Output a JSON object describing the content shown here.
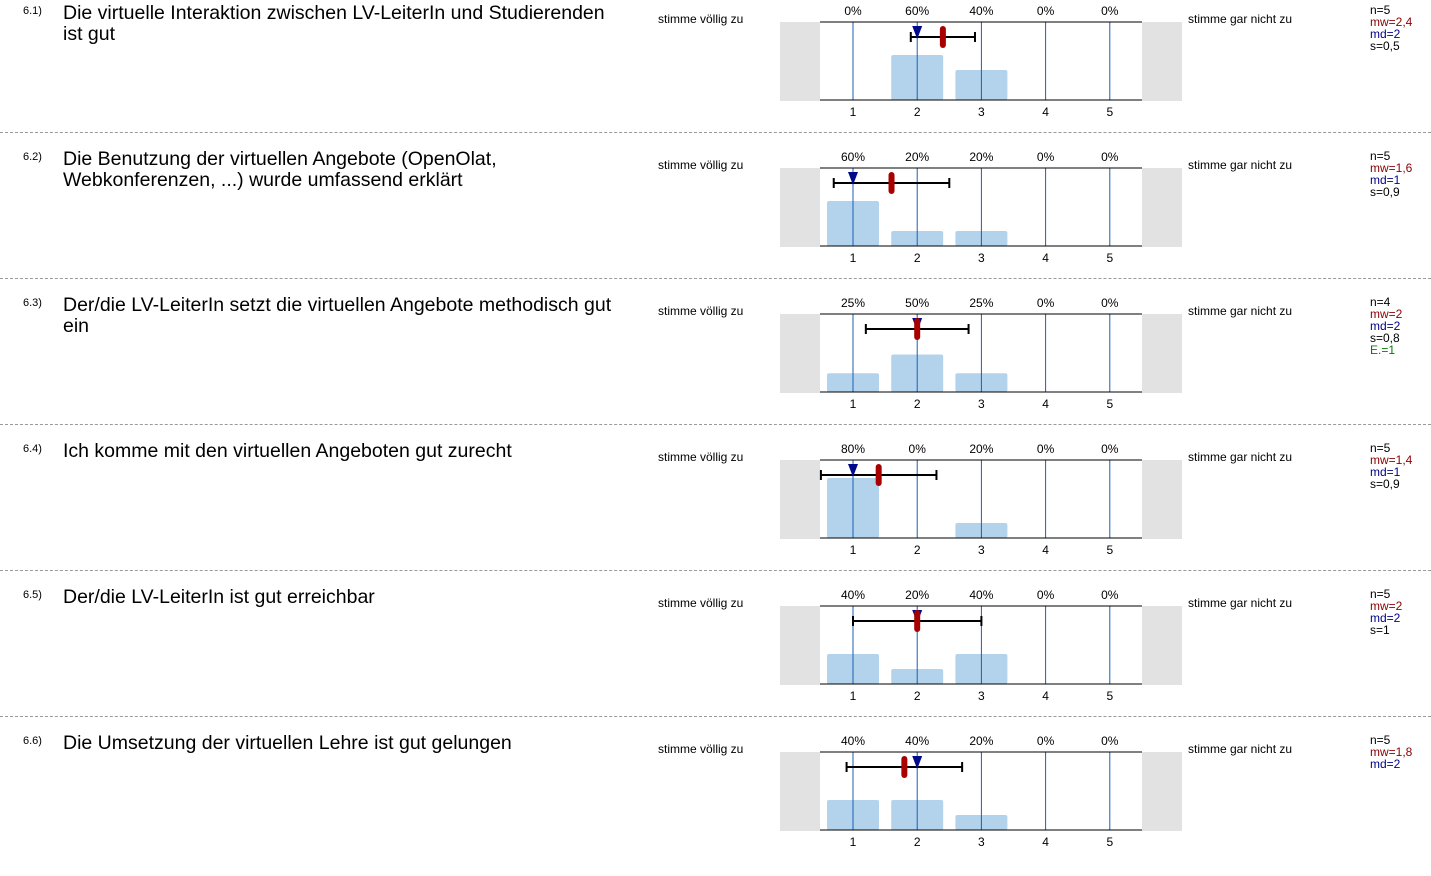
{
  "colors": {
    "bar": "#b3d3ec",
    "line": "#1a5fb4",
    "mean": "#a80000",
    "median": "#000a8a",
    "stat_n": "#000000",
    "stat_mw": "#8b0000",
    "stat_md": "#00008b",
    "stat_e": "#008000"
  },
  "scale": {
    "left_label": "stimme völlig zu",
    "right_label": "stimme gar nicht zu",
    "ticks": [
      "1",
      "2",
      "3",
      "4",
      "5"
    ]
  },
  "chart_data": [
    {
      "type": "bar",
      "number": "6.1)",
      "question": "Die virtuelle Interaktion zwischen LV-LeiterIn und Studierenden ist gut",
      "categories": [
        "1",
        "2",
        "3",
        "4",
        "5"
      ],
      "values": [
        0,
        60,
        40,
        0,
        0
      ],
      "value_labels": [
        "0%",
        "60%",
        "40%",
        "0%",
        "0%"
      ],
      "mean": 2.4,
      "median": 2,
      "sd": 0.5,
      "ylim": [
        0,
        100
      ],
      "stats": {
        "n": "n=5",
        "mw": "mw=2,4",
        "md": "md=2",
        "s": "s=0,5"
      }
    },
    {
      "type": "bar",
      "number": "6.2)",
      "question": "Die Benutzung der virtuellen Angebote (OpenOlat, Webkonferenzen, ...) wurde umfassend erklärt",
      "categories": [
        "1",
        "2",
        "3",
        "4",
        "5"
      ],
      "values": [
        60,
        20,
        20,
        0,
        0
      ],
      "value_labels": [
        "60%",
        "20%",
        "20%",
        "0%",
        "0%"
      ],
      "mean": 1.6,
      "median": 1,
      "sd": 0.9,
      "ylim": [
        0,
        100
      ],
      "stats": {
        "n": "n=5",
        "mw": "mw=1,6",
        "md": "md=1",
        "s": "s=0,9"
      }
    },
    {
      "type": "bar",
      "number": "6.3)",
      "question": "Der/die LV-LeiterIn setzt die virtuellen Angebote methodisch gut ein",
      "categories": [
        "1",
        "2",
        "3",
        "4",
        "5"
      ],
      "values": [
        25,
        50,
        25,
        0,
        0
      ],
      "value_labels": [
        "25%",
        "50%",
        "25%",
        "0%",
        "0%"
      ],
      "mean": 2,
      "median": 2,
      "sd": 0.8,
      "ylim": [
        0,
        100
      ],
      "stats": {
        "n": "n=4",
        "mw": "mw=2",
        "md": "md=2",
        "s": "s=0,8",
        "e": "E.=1"
      }
    },
    {
      "type": "bar",
      "number": "6.4)",
      "question": "Ich komme mit den virtuellen Angeboten gut zurecht",
      "categories": [
        "1",
        "2",
        "3",
        "4",
        "5"
      ],
      "values": [
        80,
        0,
        20,
        0,
        0
      ],
      "value_labels": [
        "80%",
        "0%",
        "20%",
        "0%",
        "0%"
      ],
      "mean": 1.4,
      "median": 1,
      "sd": 0.9,
      "ylim": [
        0,
        100
      ],
      "stats": {
        "n": "n=5",
        "mw": "mw=1,4",
        "md": "md=1",
        "s": "s=0,9"
      }
    },
    {
      "type": "bar",
      "number": "6.5)",
      "question": "Der/die LV-LeiterIn ist gut erreichbar",
      "categories": [
        "1",
        "2",
        "3",
        "4",
        "5"
      ],
      "values": [
        40,
        20,
        40,
        0,
        0
      ],
      "value_labels": [
        "40%",
        "20%",
        "40%",
        "0%",
        "0%"
      ],
      "mean": 2,
      "median": 2,
      "sd": 1,
      "ylim": [
        0,
        100
      ],
      "stats": {
        "n": "n=5",
        "mw": "mw=2",
        "md": "md=2",
        "s": "s=1"
      }
    },
    {
      "type": "bar",
      "number": "6.6)",
      "question": "Die Umsetzung der virtuellen Lehre ist gut gelungen",
      "categories": [
        "1",
        "2",
        "3",
        "4",
        "5"
      ],
      "values": [
        40,
        40,
        20,
        0,
        0
      ],
      "value_labels": [
        "40%",
        "40%",
        "20%",
        "0%",
        "0%"
      ],
      "mean": 1.8,
      "median": 2,
      "sd": 0.9,
      "ylim": [
        0,
        100
      ],
      "stats": {
        "n": "n=5",
        "mw": "mw=1,8",
        "md": "md=2"
      }
    }
  ]
}
